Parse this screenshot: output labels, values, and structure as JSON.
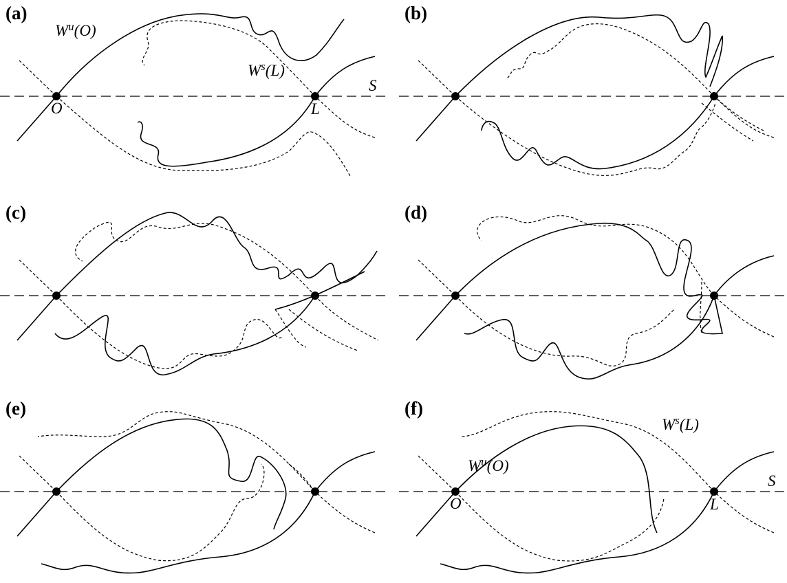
{
  "panels": [
    {
      "label": "(a)",
      "unstable": {
        "base": "W",
        "sup": "u",
        "arg": "(O)"
      },
      "stable": {
        "base": "W",
        "sup": "s",
        "arg": "(L)"
      },
      "section": "S",
      "points": [
        "O",
        "L"
      ]
    },
    {
      "label": "(b)"
    },
    {
      "label": "(c)"
    },
    {
      "label": "(d)"
    },
    {
      "label": "(e)"
    },
    {
      "label": "(f)",
      "unstable": {
        "base": "W",
        "sup": "u",
        "arg": "(O)"
      },
      "stable": {
        "base": "W",
        "sup": "s",
        "arg": "(L)"
      },
      "section": "S",
      "points": [
        "O",
        "L"
      ]
    }
  ]
}
